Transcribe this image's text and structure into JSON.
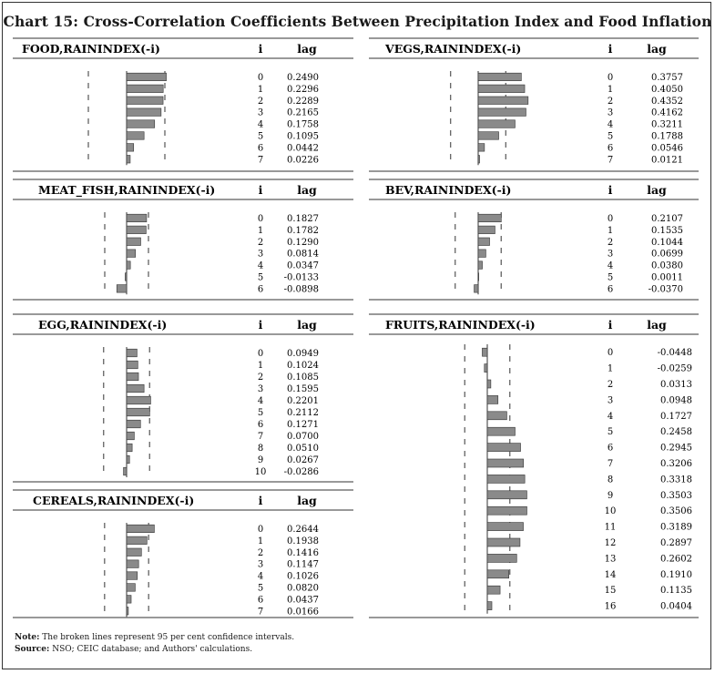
{
  "title": "Chart 15: Cross-Correlation Coefficients Between Precipitation Index and Food Inflation",
  "notes": {
    "note_label": "Note:",
    "note_text": " The broken lines represent 95 per cent confidence intervals.",
    "source_label": "Source:",
    "source_text": " NSO; CEIC database; and Authors' calculations."
  },
  "colors": {
    "bar_fill": "#8a8a8a",
    "bar_stroke": "#333333",
    "rule": "#333333"
  },
  "chart_data": [
    {
      "id": "food",
      "type": "bar",
      "orientation": "horizontal",
      "title": "FOOD,RAININDEX(-i)",
      "col_i": "i",
      "col_lag": "lag",
      "lags": [
        "0",
        "1",
        "2",
        "3",
        "4",
        "5",
        "6",
        "7"
      ],
      "values": [
        "0.2490",
        "0.2296",
        "0.2289",
        "0.2165",
        "0.1758",
        "0.1095",
        "0.0442",
        "0.0226"
      ],
      "confidence_bound": 0.24,
      "xlim": [
        -0.3,
        0.3
      ]
    },
    {
      "id": "vegs",
      "type": "bar",
      "orientation": "horizontal",
      "title": "VEGS,RAININDEX(-i)",
      "col_i": "i",
      "col_lag": "lag",
      "lags": [
        "0",
        "1",
        "2",
        "3",
        "4",
        "5",
        "6",
        "7"
      ],
      "values": [
        "0.3757",
        "0.4050",
        "0.4352",
        "0.4162",
        "0.3211",
        "0.1788",
        "0.0546",
        "0.0121"
      ],
      "confidence_bound": 0.24,
      "xlim": [
        -0.45,
        0.45
      ]
    },
    {
      "id": "meat_fish",
      "type": "bar",
      "orientation": "horizontal",
      "title": "MEAT_FISH,RAININDEX(-i)",
      "col_i": "i",
      "col_lag": "lag",
      "lags": [
        "0",
        "1",
        "2",
        "3",
        "4",
        "5",
        "6"
      ],
      "values": [
        "0.1827",
        "0.1782",
        "0.1290",
        "0.0814",
        "0.0347",
        "-0.0133",
        "-0.0898"
      ],
      "confidence_bound": 0.2,
      "xlim": [
        -0.28,
        0.28
      ]
    },
    {
      "id": "bev",
      "type": "bar",
      "orientation": "horizontal",
      "title": "BEV,RAININDEX(-i)",
      "col_i": "i",
      "col_lag": "lag",
      "lags": [
        "0",
        "1",
        "2",
        "3",
        "4",
        "5",
        "6"
      ],
      "values": [
        "0.2107",
        "0.1535",
        "0.1044",
        "0.0699",
        "0.0380",
        "0.0011",
        "-0.0370"
      ],
      "confidence_bound": 0.21,
      "xlim": [
        -0.3,
        0.3
      ]
    },
    {
      "id": "egg",
      "type": "bar",
      "orientation": "horizontal",
      "title": "EGG,RAININDEX(-i)",
      "col_i": "i",
      "col_lag": "lag",
      "lags": [
        "0",
        "1",
        "2",
        "3",
        "4",
        "5",
        "6",
        "7",
        "8",
        "9",
        "10"
      ],
      "values": [
        "0.0949",
        "0.1024",
        "0.1085",
        "0.1595",
        "0.2201",
        "0.2112",
        "0.1271",
        "0.0700",
        "0.0510",
        "0.0267",
        "-0.0286"
      ],
      "confidence_bound": 0.21,
      "xlim": [
        -0.3,
        0.3
      ]
    },
    {
      "id": "fruits",
      "type": "bar",
      "orientation": "horizontal",
      "title": "FRUITS,RAININDEX(-i)",
      "col_i": "i",
      "col_lag": "lag",
      "lags": [
        "0",
        "1",
        "2",
        "3",
        "4",
        "5",
        "6",
        "7",
        "8",
        "9",
        "10",
        "11",
        "12",
        "13",
        "14",
        "15",
        "16"
      ],
      "values": [
        "-0.0448",
        "-0.0259",
        "0.0313",
        "0.0948",
        "0.1727",
        "0.2458",
        "0.2945",
        "0.3206",
        "0.3318",
        "0.3503",
        "0.3506",
        "0.3189",
        "0.2897",
        "0.2602",
        "0.1910",
        "0.1135",
        "0.0404"
      ],
      "confidence_bound": 0.2,
      "xlim": [
        -0.45,
        0.45
      ]
    },
    {
      "id": "cereals",
      "type": "bar",
      "orientation": "horizontal",
      "title": "CEREALS,RAININDEX(-i)",
      "col_i": "i",
      "col_lag": "lag",
      "lags": [
        "0",
        "1",
        "2",
        "3",
        "4",
        "5",
        "6",
        "7"
      ],
      "values": [
        "0.2644",
        "0.1938",
        "0.1416",
        "0.1147",
        "0.1026",
        "0.0820",
        "0.0437",
        "0.0166"
      ],
      "confidence_bound": 0.21,
      "xlim": [
        -0.3,
        0.3
      ]
    }
  ]
}
